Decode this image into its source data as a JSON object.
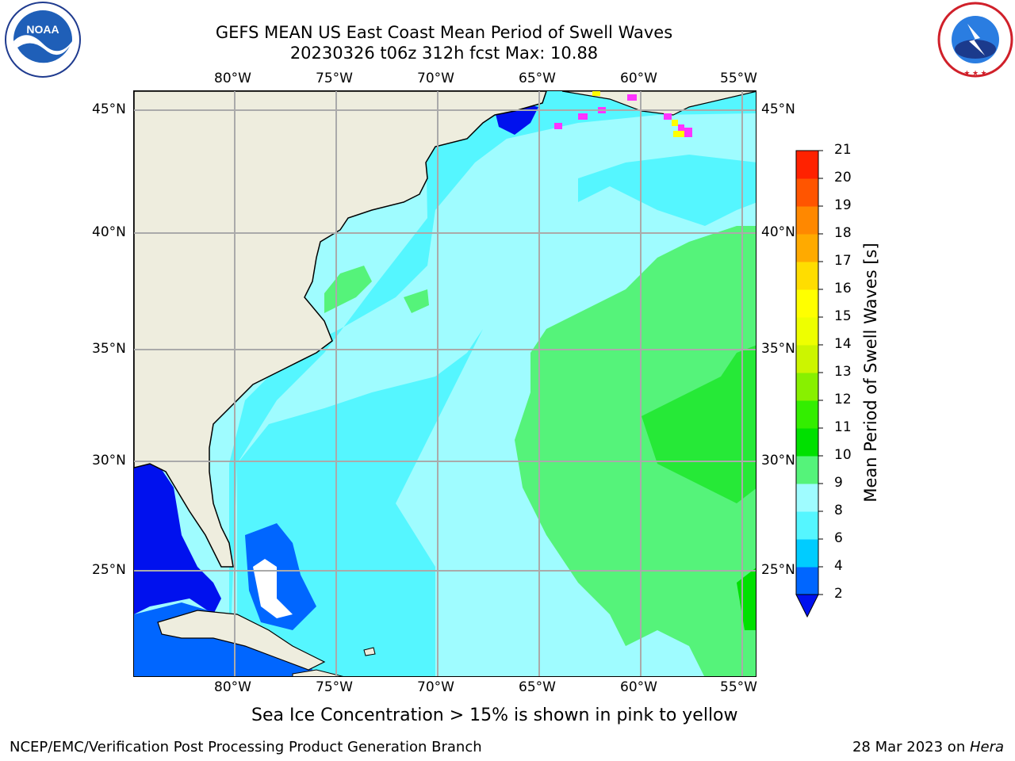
{
  "header": {
    "title_line1": "GEFS MEAN US East Coast Mean Period of Swell Waves",
    "title_line2": "20230326 t06z 312h fcst   Max: 10.88"
  },
  "logos": {
    "left": "NOAA",
    "right": "NATIONAL WEATHER SERVICE"
  },
  "map": {
    "lon_labels": [
      "80°W",
      "75°W",
      "70°W",
      "65°W",
      "60°W",
      "55°W"
    ],
    "lat_labels": [
      "45°N",
      "40°N",
      "35°N",
      "30°N",
      "25°N"
    ],
    "land_color": "#eeedde",
    "sea_ice_colors": [
      "#ff33ff",
      "#ffff00"
    ]
  },
  "colorbar": {
    "label": "Mean Period of Swell Waves [s]",
    "ticks": [
      "2",
      "4",
      "6",
      "8",
      "9",
      "10",
      "11",
      "12",
      "13",
      "14",
      "15",
      "16",
      "17",
      "18",
      "19",
      "20",
      "21"
    ],
    "colors": [
      "#0066ff",
      "#00ccff",
      "#55f6ff",
      "#9ffcff",
      "#55f37a",
      "#00e000",
      "#33ee00",
      "#88f000",
      "#ccf500",
      "#eeff00",
      "#ffff00",
      "#ffdd00",
      "#ffaa00",
      "#ff8800",
      "#ff5500",
      "#ff2200",
      "#ff0000"
    ],
    "extend_color": "#0011ee"
  },
  "note": "Sea Ice Concentration > 15% is shown in pink to yellow",
  "footer": {
    "left": "NCEP/EMC/Verification Post Processing Product Generation Branch",
    "right_date": "28 Mar 2023 on ",
    "right_host": "Hera"
  }
}
